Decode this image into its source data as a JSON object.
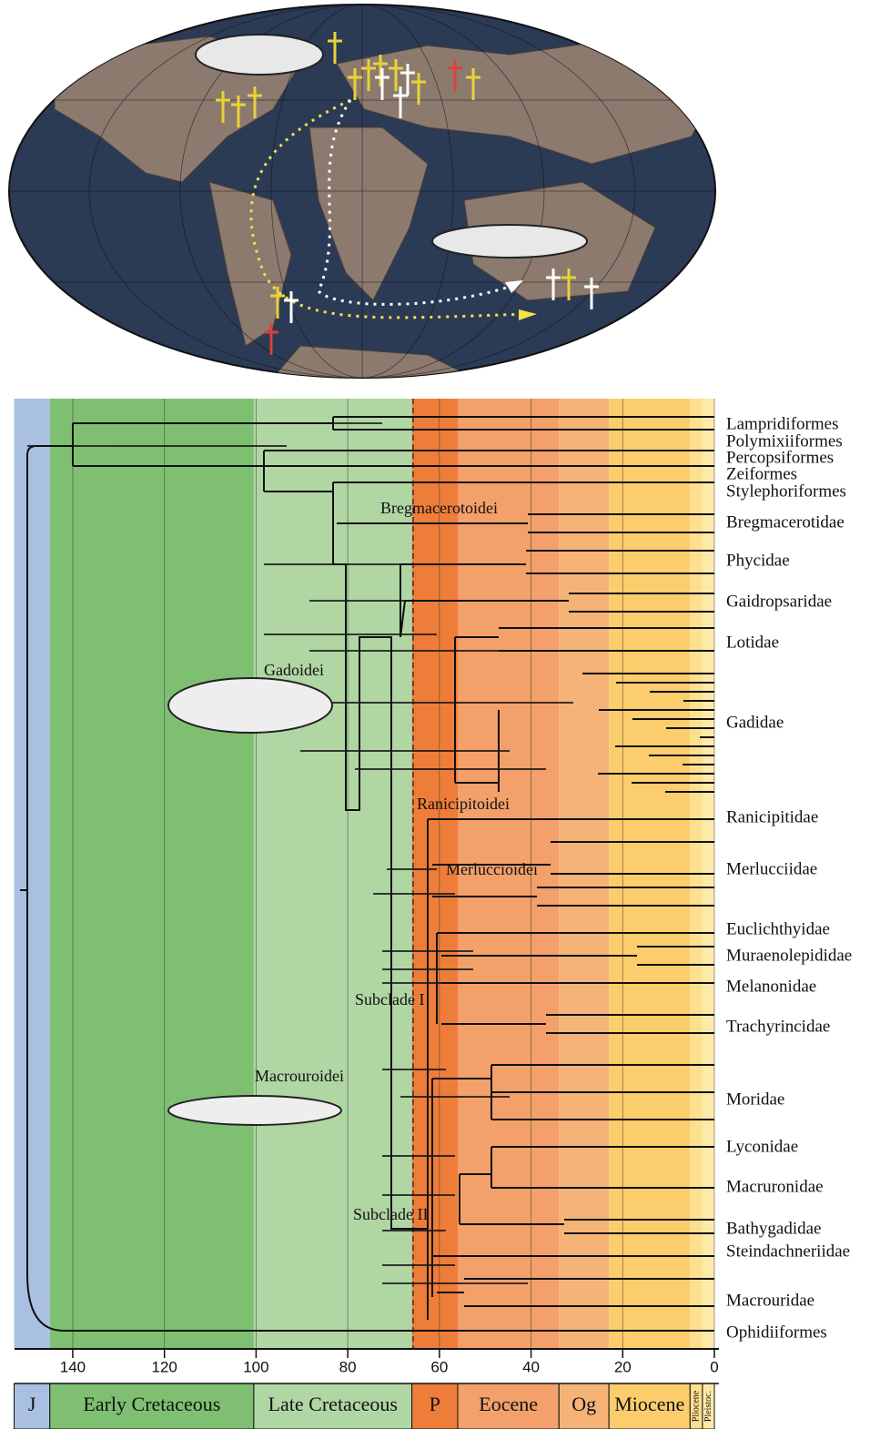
{
  "axis": {
    "xlim": [
      152.8,
      0
    ],
    "xticks": [
      140,
      120,
      100,
      80,
      60,
      40,
      20,
      0
    ]
  },
  "periods": [
    {
      "name": "J",
      "start": 152.8,
      "end": 145,
      "color": "#aac0e2"
    },
    {
      "name": "Early Cretaceous",
      "start": 145,
      "end": 100.5,
      "color": "#7fbf72"
    },
    {
      "name": "Late Cretaceous",
      "start": 100.5,
      "end": 66,
      "color": "#b0d6a4"
    },
    {
      "name": "P",
      "start": 66,
      "end": 56,
      "color": "#ee7d3a"
    },
    {
      "name": "Eocene",
      "start": 56,
      "end": 33.9,
      "color": "#f3a06a"
    },
    {
      "name": "Og",
      "start": 33.9,
      "end": 23,
      "color": "#f5b378"
    },
    {
      "name": "Miocene",
      "start": 23,
      "end": 5.3,
      "color": "#fccd6c"
    },
    {
      "name": "Pliocene",
      "start": 5.3,
      "end": 2.6,
      "color": "#fde08e"
    },
    {
      "name": "Pleistoc.",
      "start": 2.6,
      "end": 0,
      "color": "#fdeaa9"
    }
  ],
  "tips": [
    "Lampridiformes",
    "Polymixiiformes",
    "Percopsiformes",
    "Zeiformes",
    "Stylephoriformes",
    "Bregmacerotidae",
    "Phycidae",
    "Gaidropsaridae",
    "Lotidae",
    "Gadidae",
    "Ranicipitidae",
    "Merlucciidae",
    "Euclichthyidae",
    "Muraenolepididae",
    "Melanonidae",
    "Trachyrincidae",
    "Moridae",
    "Lyconidae",
    "Macruronidae",
    "Bathygadidae",
    "Steindachneriidae",
    "Macrouridae",
    "Ophidiiformes"
  ],
  "clades": [
    "Bregmacerotoidei",
    "Gadoidei",
    "Ranicipitoidei",
    "Merluccioidei",
    "Subclade I",
    "Macrouroidei",
    "Subclade II"
  ]
}
